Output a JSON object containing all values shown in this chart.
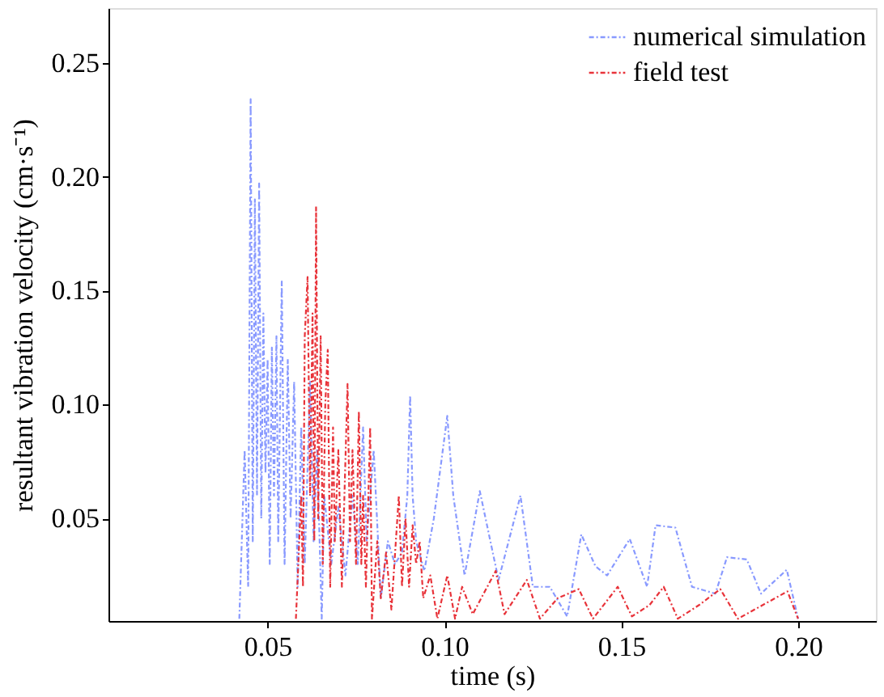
{
  "chart_data": {
    "type": "line",
    "xlabel": "time (s)",
    "ylabel": "resultant vibration velocity (cm·s⁻¹)",
    "xlim": [
      0.005,
      0.222
    ],
    "ylim": [
      0.005,
      0.274
    ],
    "xticks": [
      0.05,
      {
        "value": 0.1,
        "label": "0.10"
      },
      0.15,
      {
        "value": 0.2,
        "label": "0.20"
      }
    ],
    "yticks": [
      0.05,
      {
        "value": 0.1,
        "label": "0.10"
      },
      0.15,
      {
        "value": 0.2,
        "label": "0.20"
      },
      0.25
    ],
    "grid": false,
    "legend": "top right",
    "line_style": "dashed",
    "marker": "none",
    "series": [
      {
        "name": "numerical simulation",
        "color": "#8899ff",
        "x": [
          0.042,
          0.0435,
          0.0445,
          0.0452,
          0.0458,
          0.0464,
          0.047,
          0.0476,
          0.0482,
          0.0488,
          0.0494,
          0.05,
          0.0506,
          0.0512,
          0.0518,
          0.0525,
          0.053,
          0.054,
          0.0548,
          0.0557,
          0.0565,
          0.0575,
          0.0585,
          0.0595,
          0.0605,
          0.062,
          0.063,
          0.064,
          0.0653,
          0.066,
          0.068,
          0.07,
          0.072,
          0.074,
          0.0755,
          0.077,
          0.078,
          0.08,
          0.082,
          0.084,
          0.086,
          0.088,
          0.0895,
          0.0903,
          0.091,
          0.092,
          0.0943,
          0.097,
          0.1008,
          0.1025,
          0.1057,
          0.11,
          0.1153,
          0.1215,
          0.125,
          0.1298,
          0.1347,
          0.1387,
          0.1427,
          0.146,
          0.1524,
          0.1573,
          0.1597,
          0.1653,
          0.17,
          0.1766,
          0.1799,
          0.1855,
          0.1895,
          0.1968,
          0.2
        ],
        "values": [
          0.006,
          0.08,
          0.02,
          0.234,
          0.04,
          0.19,
          0.06,
          0.197,
          0.05,
          0.14,
          0.07,
          0.12,
          0.03,
          0.125,
          0.06,
          0.13,
          0.04,
          0.154,
          0.03,
          0.12,
          0.05,
          0.11,
          0.02,
          0.09,
          0.03,
          0.11,
          0.04,
          0.08,
          0.006,
          0.06,
          0.03,
          0.055,
          0.025,
          0.06,
          0.03,
          0.09,
          0.04,
          0.08,
          0.015,
          0.04,
          0.03,
          0.035,
          0.06,
          0.104,
          0.06,
          0.04,
          0.027,
          0.05,
          0.095,
          0.06,
          0.025,
          0.062,
          0.023,
          0.06,
          0.02,
          0.02,
          0.007,
          0.043,
          0.029,
          0.025,
          0.041,
          0.02,
          0.047,
          0.046,
          0.02,
          0.017,
          0.033,
          0.032,
          0.017,
          0.0275,
          0.006
        ]
      },
      {
        "name": "field test",
        "color": "#e8333a",
        "x": [
          0.058,
          0.0595,
          0.06,
          0.0605,
          0.0613,
          0.062,
          0.0627,
          0.0632,
          0.0637,
          0.0643,
          0.065,
          0.0656,
          0.0663,
          0.067,
          0.0677,
          0.0685,
          0.069,
          0.07,
          0.071,
          0.0726,
          0.0733,
          0.074,
          0.075,
          0.0758,
          0.0765,
          0.077,
          0.0778,
          0.079,
          0.0795,
          0.081,
          0.082,
          0.0835,
          0.085,
          0.0871,
          0.088,
          0.089,
          0.09,
          0.091,
          0.092,
          0.093,
          0.094,
          0.096,
          0.098,
          0.1008,
          0.103,
          0.105,
          0.108,
          0.1145,
          0.117,
          0.1233,
          0.127,
          0.132,
          0.138,
          0.142,
          0.149,
          0.153,
          0.158,
          0.162,
          0.166,
          0.172,
          0.178,
          0.183,
          0.19,
          0.197,
          0.2
        ],
        "values": [
          0.006,
          0.06,
          0.02,
          0.13,
          0.156,
          0.06,
          0.14,
          0.04,
          0.187,
          0.05,
          0.13,
          0.03,
          0.1,
          0.124,
          0.02,
          0.09,
          0.04,
          0.08,
          0.02,
          0.109,
          0.04,
          0.08,
          0.03,
          0.097,
          0.03,
          0.06,
          0.02,
          0.09,
          0.006,
          0.04,
          0.015,
          0.035,
          0.01,
          0.06,
          0.02,
          0.05,
          0.02,
          0.047,
          0.03,
          0.04,
          0.015,
          0.025,
          0.006,
          0.025,
          0.006,
          0.02,
          0.008,
          0.027,
          0.008,
          0.023,
          0.006,
          0.015,
          0.019,
          0.006,
          0.02,
          0.007,
          0.012,
          0.02,
          0.006,
          0.012,
          0.019,
          0.006,
          0.012,
          0.018,
          0.006
        ]
      }
    ]
  }
}
